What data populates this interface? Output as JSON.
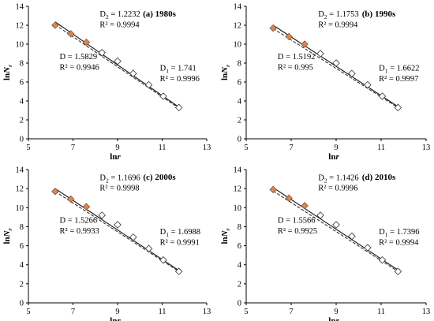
{
  "chart_data": [
    {
      "type": "scatter",
      "title": "(a) 1980s",
      "xlabel": "lnr",
      "ylabel": "lnNr",
      "xlim": [
        5,
        13
      ],
      "ylim": [
        0,
        14
      ],
      "xticks": [
        "5",
        "7",
        "9",
        "11",
        "13"
      ],
      "yticks": [
        "0",
        "2",
        "4",
        "6",
        "8",
        "10",
        "12",
        "14"
      ],
      "series": [
        {
          "marker": "filled-diamond",
          "color": "#e0854a",
          "x": [
            6.2,
            6.9,
            7.6
          ],
          "y": [
            12.0,
            11.1,
            10.2
          ]
        },
        {
          "marker": "open-diamond",
          "color": "#ffffff",
          "x": [
            8.3,
            9.0,
            9.7,
            10.4,
            11.05,
            11.75
          ],
          "y": [
            9.1,
            8.2,
            6.9,
            5.7,
            4.5,
            3.3
          ]
        }
      ],
      "fits": [
        {
          "style": "solid",
          "x": [
            6.2,
            11.75
          ],
          "y": [
            12.35,
            3.35
          ]
        },
        {
          "style": "dashed",
          "x": [
            6.2,
            11.75
          ],
          "y": [
            12.05,
            3.25
          ]
        }
      ],
      "annotations": {
        "d2": {
          "sym": "D",
          "sub": "2",
          "val": " = 1.2232"
        },
        "r2a": "R² = 0.9994",
        "d": "D = 1.5829",
        "r2b": "R² = 0.9946",
        "d1": {
          "sym": "D",
          "sub": "1",
          "val": " = 1.741"
        },
        "r2c": "R² = 0.9996"
      }
    },
    {
      "type": "scatter",
      "title": "(b) 1990s",
      "xlabel": "lnr",
      "ylabel": "lnNr",
      "xlim": [
        5,
        13
      ],
      "ylim": [
        0,
        14
      ],
      "xticks": [
        "5",
        "7",
        "9",
        "11",
        "13"
      ],
      "yticks": [
        "0",
        "2",
        "4",
        "6",
        "8",
        "10",
        "12",
        "14"
      ],
      "series": [
        {
          "marker": "filled-diamond",
          "color": "#e0854a",
          "x": [
            6.2,
            6.9,
            7.6
          ],
          "y": [
            11.7,
            10.8,
            10.0
          ]
        },
        {
          "marker": "open-diamond",
          "color": "#ffffff",
          "x": [
            8.3,
            9.0,
            9.7,
            10.4,
            11.05,
            11.75
          ],
          "y": [
            9.0,
            8.0,
            6.9,
            5.7,
            4.5,
            3.3
          ]
        }
      ],
      "fits": [
        {
          "style": "solid",
          "x": [
            6.2,
            11.75
          ],
          "y": [
            12.0,
            3.4
          ]
        },
        {
          "style": "dashed",
          "x": [
            6.2,
            11.75
          ],
          "y": [
            11.65,
            3.3
          ]
        }
      ],
      "annotations": {
        "d2": {
          "sym": "D",
          "sub": "2",
          "val": " = 1.1753"
        },
        "r2a": "R² = 0.9994",
        "d": "D = 1.5192",
        "r2b": "R² = 0.995",
        "d1": {
          "sym": "D",
          "sub": "1",
          "val": " = 1.6622"
        },
        "r2c": "R² = 0.9997"
      }
    },
    {
      "type": "scatter",
      "title": "(c) 2000s",
      "xlabel": "lnr",
      "ylabel": "lnNr",
      "xlim": [
        5,
        13
      ],
      "ylim": [
        0,
        14
      ],
      "xticks": [
        "5",
        "7",
        "9",
        "11",
        "13"
      ],
      "yticks": [
        "0",
        "2",
        "4",
        "6",
        "8",
        "10",
        "12",
        "14"
      ],
      "series": [
        {
          "marker": "filled-diamond",
          "color": "#e0854a",
          "x": [
            6.2,
            6.9,
            7.6
          ],
          "y": [
            11.7,
            10.9,
            10.1
          ]
        },
        {
          "marker": "open-diamond",
          "color": "#ffffff",
          "x": [
            8.3,
            9.0,
            9.7,
            10.4,
            11.05,
            11.75
          ],
          "y": [
            9.2,
            8.2,
            6.9,
            5.7,
            4.5,
            3.3
          ]
        }
      ],
      "fits": [
        {
          "style": "solid",
          "x": [
            6.2,
            11.75
          ],
          "y": [
            12.0,
            3.4
          ]
        },
        {
          "style": "dashed",
          "x": [
            6.2,
            11.75
          ],
          "y": [
            11.7,
            3.3
          ]
        }
      ],
      "annotations": {
        "d2": {
          "sym": "D",
          "sub": "2",
          "val": " = 1.1696"
        },
        "r2a": "R² = 0.9998",
        "d": "D = 1.5266",
        "r2b": "R² = 0.9933",
        "d1": {
          "sym": "D",
          "sub": "1",
          "val": " = 1.6988"
        },
        "r2c": "R² = 0.9991"
      }
    },
    {
      "type": "scatter",
      "title": "(d) 2010s",
      "xlabel": "lnr",
      "ylabel": "lnNr",
      "xlim": [
        5,
        13
      ],
      "ylim": [
        0,
        14
      ],
      "xticks": [
        "5",
        "7",
        "9",
        "11",
        "13"
      ],
      "yticks": [
        "0",
        "2",
        "4",
        "6",
        "8",
        "10",
        "12",
        "14"
      ],
      "series": [
        {
          "marker": "filled-diamond",
          "color": "#e0854a",
          "x": [
            6.2,
            6.9,
            7.6
          ],
          "y": [
            11.9,
            11.0,
            10.2
          ]
        },
        {
          "marker": "open-diamond",
          "color": "#ffffff",
          "x": [
            8.3,
            9.0,
            9.7,
            10.4,
            11.05,
            11.75
          ],
          "y": [
            9.2,
            8.2,
            7.0,
            5.8,
            4.5,
            3.3
          ]
        }
      ],
      "fits": [
        {
          "style": "solid",
          "x": [
            6.2,
            11.75
          ],
          "y": [
            12.1,
            3.45
          ]
        },
        {
          "style": "dashed",
          "x": [
            6.2,
            11.75
          ],
          "y": [
            11.75,
            3.3
          ]
        }
      ],
      "annotations": {
        "d2": {
          "sym": "D",
          "sub": "2",
          "val": " = 1.1426"
        },
        "r2a": "R² = 0.9996",
        "d": "D = 1.5566",
        "r2b": "R² = 0.9925",
        "d1": {
          "sym": "D",
          "sub": "1",
          "val": " = 1.7396"
        },
        "r2c": "R² = 0.9994"
      }
    }
  ]
}
